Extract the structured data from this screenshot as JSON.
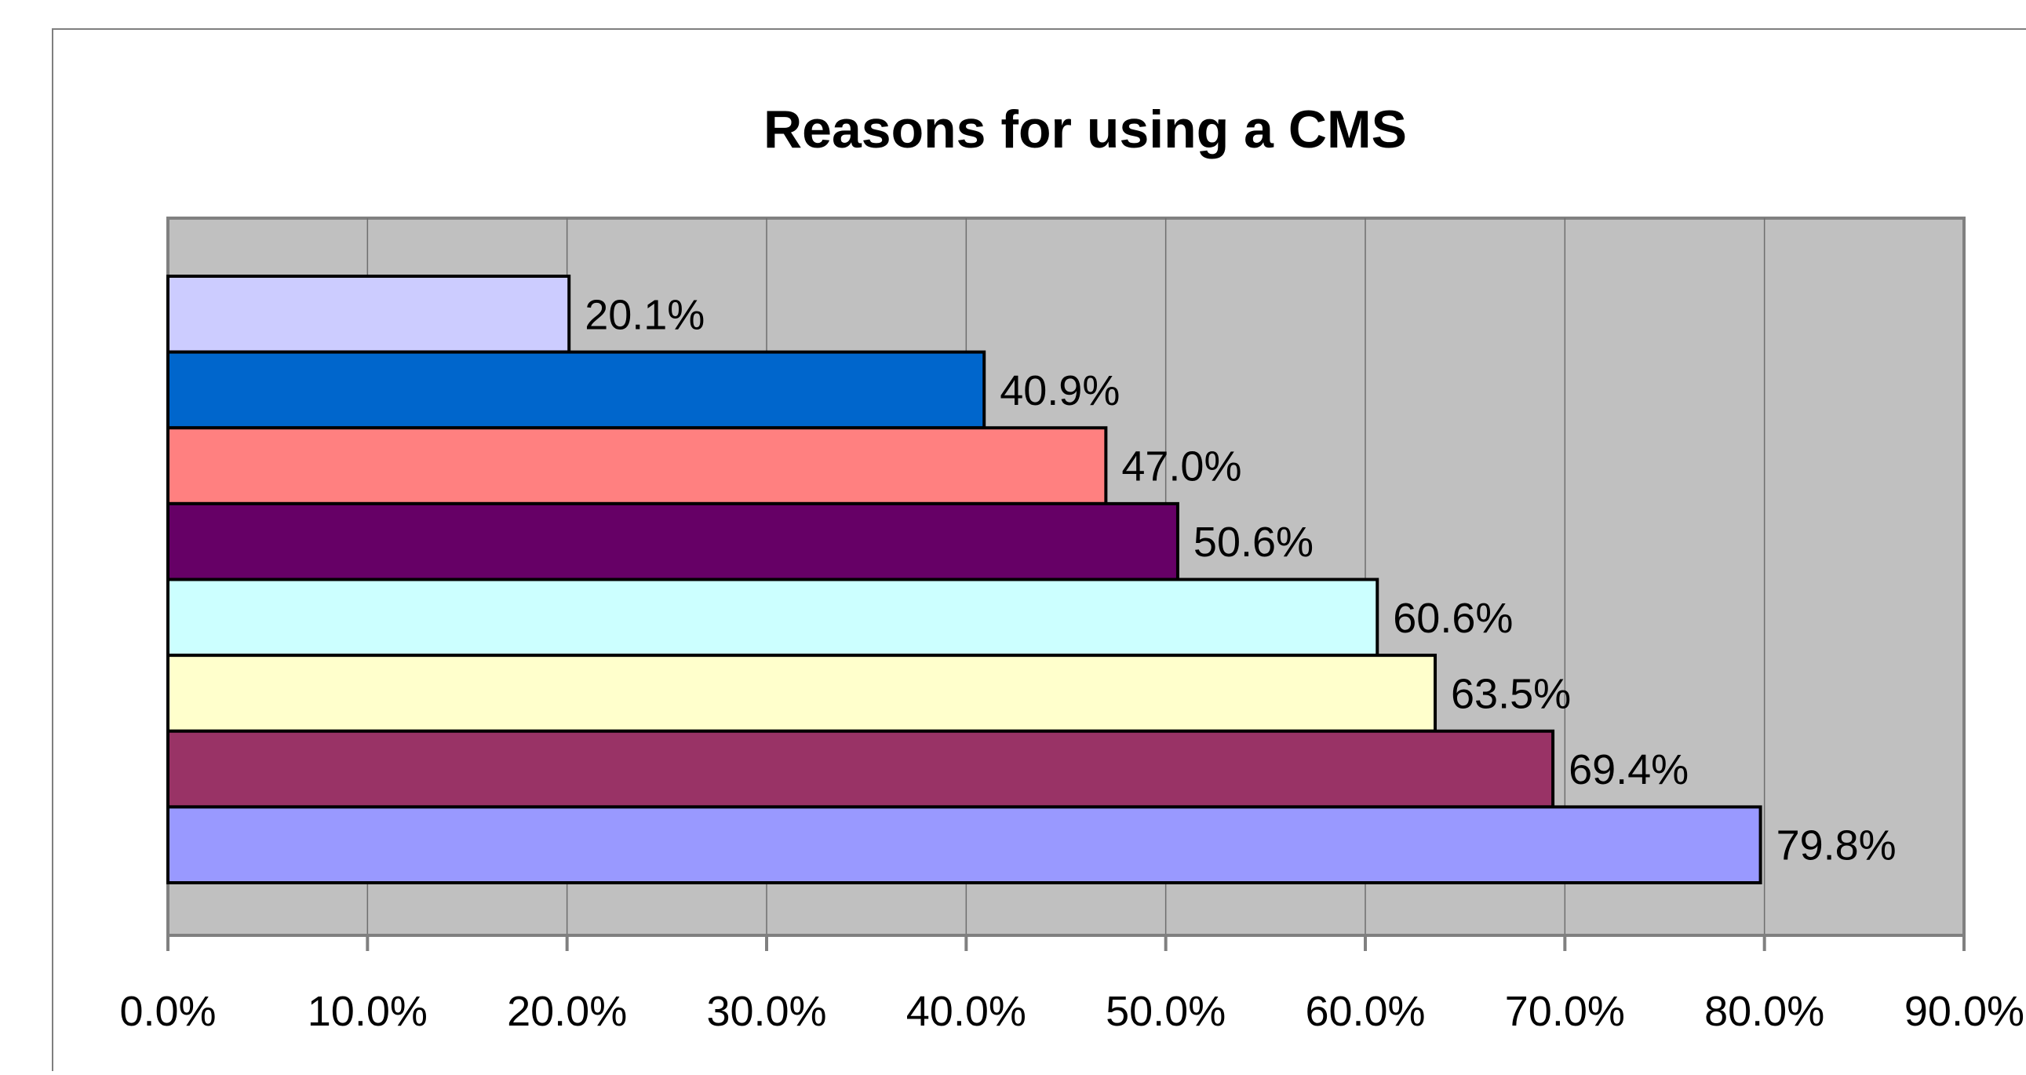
{
  "chart_data": {
    "type": "bar",
    "orientation": "horizontal",
    "title": "Reasons for using a CMS",
    "xlabel": "",
    "ylabel": "",
    "xlim": [
      0,
      90
    ],
    "x_ticks": [
      "0.0%",
      "10.0%",
      "20.0%",
      "30.0%",
      "40.0%",
      "50.0%",
      "60.0%",
      "70.0%",
      "80.0%",
      "90.0%"
    ],
    "grid": "vertical",
    "legend": "none",
    "values": [
      20.1,
      40.9,
      47.0,
      50.6,
      60.6,
      63.5,
      69.4,
      79.8
    ],
    "labels": [
      "20.1%",
      "40.9%",
      "47.0%",
      "50.6%",
      "60.6%",
      "63.5%",
      "69.4%",
      "79.8%"
    ],
    "colors": [
      "#CCCCFF",
      "#0066CC",
      "#FF8080",
      "#660066",
      "#CCFFFF",
      "#FFFFCC",
      "#993366",
      "#9999FF"
    ],
    "plot_background": "#C0C0C0"
  }
}
